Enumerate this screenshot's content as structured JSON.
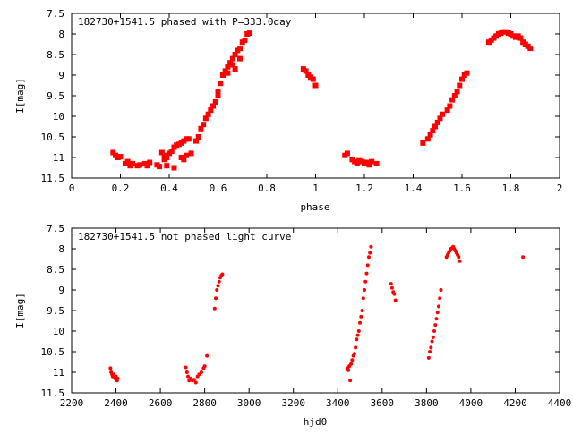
{
  "chart_data": [
    {
      "type": "scatter",
      "title": "182730+1541.5 phased with P=333.0day",
      "xlabel": "phase",
      "ylabel": "I[mag]",
      "xlim": [
        0,
        2
      ],
      "ylim": [
        11.5,
        7.5
      ],
      "y_inverted": true,
      "x_ticks": [
        "0",
        "0.2",
        "0.4",
        "0.6",
        "0.8",
        "1",
        "1.2",
        "1.4",
        "1.6",
        "1.8",
        "2"
      ],
      "y_ticks": [
        "7.5",
        "8",
        "8.5",
        "9",
        "9.5",
        "10",
        "10.5",
        "11",
        "11.5"
      ],
      "grid": false,
      "marker_color": "#ff0000",
      "series": [
        {
          "points": [
            [
              0.17,
              10.88
            ],
            [
              0.18,
              10.95
            ],
            [
              0.19,
              11.0
            ],
            [
              0.2,
              10.98
            ],
            [
              0.22,
              11.15
            ],
            [
              0.23,
              11.1
            ],
            [
              0.24,
              11.2
            ],
            [
              0.25,
              11.15
            ],
            [
              0.27,
              11.2
            ],
            [
              0.28,
              11.18
            ],
            [
              0.3,
              11.15
            ],
            [
              0.31,
              11.2
            ],
            [
              0.32,
              11.12
            ],
            [
              0.35,
              11.18
            ],
            [
              0.36,
              11.22
            ],
            [
              0.37,
              10.88
            ],
            [
              0.38,
              10.95
            ],
            [
              0.39,
              11.0
            ],
            [
              0.4,
              10.9
            ],
            [
              0.41,
              10.85
            ],
            [
              0.42,
              10.75
            ],
            [
              0.43,
              10.7
            ],
            [
              0.44,
              10.68
            ],
            [
              0.45,
              10.65
            ],
            [
              0.46,
              10.6
            ],
            [
              0.47,
              10.55
            ],
            [
              0.48,
              10.55
            ],
            [
              0.38,
              11.05
            ],
            [
              0.39,
              11.2
            ],
            [
              0.42,
              11.25
            ],
            [
              0.45,
              11.0
            ],
            [
              0.46,
              11.05
            ],
            [
              0.47,
              10.95
            ],
            [
              0.49,
              10.9
            ],
            [
              0.51,
              10.6
            ],
            [
              0.52,
              10.5
            ],
            [
              0.53,
              10.3
            ],
            [
              0.54,
              10.2
            ],
            [
              0.55,
              10.05
            ],
            [
              0.56,
              9.95
            ],
            [
              0.57,
              9.85
            ],
            [
              0.58,
              9.75
            ],
            [
              0.59,
              9.65
            ],
            [
              0.6,
              9.5
            ],
            [
              0.6,
              9.4
            ],
            [
              0.61,
              9.2
            ],
            [
              0.62,
              9.0
            ],
            [
              0.63,
              8.9
            ],
            [
              0.64,
              8.8
            ],
            [
              0.65,
              8.7
            ],
            [
              0.66,
              8.6
            ],
            [
              0.67,
              8.5
            ],
            [
              0.68,
              8.4
            ],
            [
              0.69,
              8.35
            ],
            [
              0.7,
              8.2
            ],
            [
              0.71,
              8.15
            ],
            [
              0.72,
              8.0
            ],
            [
              0.73,
              7.98
            ],
            [
              0.64,
              8.95
            ],
            [
              0.66,
              8.75
            ],
            [
              0.67,
              8.85
            ],
            [
              0.69,
              8.6
            ],
            [
              0.95,
              8.85
            ],
            [
              0.96,
              8.9
            ],
            [
              0.97,
              9.0
            ],
            [
              0.98,
              9.05
            ],
            [
              0.99,
              9.1
            ],
            [
              1.0,
              9.25
            ],
            [
              1.12,
              10.95
            ],
            [
              1.13,
              10.9
            ],
            [
              1.15,
              11.05
            ],
            [
              1.16,
              11.1
            ],
            [
              1.17,
              11.15
            ],
            [
              1.18,
              11.08
            ],
            [
              1.19,
              11.1
            ],
            [
              1.2,
              11.15
            ],
            [
              1.21,
              11.12
            ],
            [
              1.22,
              11.18
            ],
            [
              1.23,
              11.1
            ],
            [
              1.25,
              11.15
            ],
            [
              1.44,
              10.65
            ],
            [
              1.46,
              10.55
            ],
            [
              1.47,
              10.45
            ],
            [
              1.48,
              10.35
            ],
            [
              1.49,
              10.25
            ],
            [
              1.5,
              10.15
            ],
            [
              1.51,
              10.05
            ],
            [
              1.52,
              9.95
            ],
            [
              1.54,
              9.85
            ],
            [
              1.55,
              9.75
            ],
            [
              1.56,
              9.6
            ],
            [
              1.57,
              9.5
            ],
            [
              1.58,
              9.4
            ],
            [
              1.59,
              9.25
            ],
            [
              1.6,
              9.1
            ],
            [
              1.61,
              9.0
            ],
            [
              1.62,
              8.95
            ],
            [
              1.71,
              8.2
            ],
            [
              1.72,
              8.15
            ],
            [
              1.73,
              8.1
            ],
            [
              1.74,
              8.05
            ],
            [
              1.75,
              8.0
            ],
            [
              1.76,
              7.98
            ],
            [
              1.77,
              7.95
            ],
            [
              1.78,
              7.95
            ],
            [
              1.79,
              7.98
            ],
            [
              1.8,
              8.0
            ],
            [
              1.81,
              8.05
            ],
            [
              1.82,
              8.08
            ],
            [
              1.83,
              8.05
            ],
            [
              1.84,
              8.1
            ],
            [
              1.85,
              8.2
            ],
            [
              1.86,
              8.25
            ],
            [
              1.87,
              8.3
            ],
            [
              1.88,
              8.35
            ]
          ]
        }
      ]
    },
    {
      "type": "scatter",
      "title": "182730+1541.5 not phased light curve",
      "xlabel": "hjd0",
      "ylabel": "I[mag]",
      "xlim": [
        2200,
        4400
      ],
      "ylim": [
        11.5,
        7.5
      ],
      "y_inverted": true,
      "x_ticks": [
        "2200",
        "2400",
        "2600",
        "2800",
        "3000",
        "3200",
        "3400",
        "3600",
        "3800",
        "4000",
        "4200",
        "4400"
      ],
      "y_ticks": [
        "7.5",
        "8",
        "8.5",
        "9",
        "9.5",
        "10",
        "10.5",
        "11",
        "11.5"
      ],
      "grid": false,
      "marker_color": "#ff0000",
      "series": [
        {
          "points": [
            [
              2375,
              10.9
            ],
            [
              2378,
              11.0
            ],
            [
              2382,
              11.05
            ],
            [
              2385,
              11.1
            ],
            [
              2390,
              11.05
            ],
            [
              2395,
              11.15
            ],
            [
              2400,
              11.1
            ],
            [
              2405,
              11.2
            ],
            [
              2408,
              11.15
            ],
            [
              2715,
              10.88
            ],
            [
              2720,
              11.0
            ],
            [
              2725,
              11.1
            ],
            [
              2730,
              11.2
            ],
            [
              2738,
              11.15
            ],
            [
              2745,
              11.2
            ],
            [
              2752,
              11.18
            ],
            [
              2760,
              11.25
            ],
            [
              2768,
              11.1
            ],
            [
              2775,
              11.05
            ],
            [
              2785,
              11.0
            ],
            [
              2795,
              10.9
            ],
            [
              2800,
              10.85
            ],
            [
              2810,
              10.6
            ],
            [
              2845,
              9.45
            ],
            [
              2850,
              9.2
            ],
            [
              2855,
              9.0
            ],
            [
              2860,
              8.9
            ],
            [
              2865,
              8.8
            ],
            [
              2870,
              8.7
            ],
            [
              2875,
              8.65
            ],
            [
              2880,
              8.62
            ],
            [
              3445,
              10.9
            ],
            [
              3448,
              10.95
            ],
            [
              3452,
              10.85
            ],
            [
              3456,
              11.2
            ],
            [
              3460,
              10.8
            ],
            [
              3465,
              10.7
            ],
            [
              3470,
              10.6
            ],
            [
              3475,
              10.55
            ],
            [
              3480,
              10.4
            ],
            [
              3485,
              10.2
            ],
            [
              3490,
              10.1
            ],
            [
              3495,
              10.0
            ],
            [
              3500,
              9.8
            ],
            [
              3505,
              9.65
            ],
            [
              3510,
              9.5
            ],
            [
              3515,
              9.2
            ],
            [
              3520,
              9.0
            ],
            [
              3525,
              8.8
            ],
            [
              3530,
              8.6
            ],
            [
              3535,
              8.4
            ],
            [
              3540,
              8.2
            ],
            [
              3545,
              8.1
            ],
            [
              3550,
              7.95
            ],
            [
              3640,
              8.85
            ],
            [
              3645,
              8.95
            ],
            [
              3650,
              9.05
            ],
            [
              3655,
              9.1
            ],
            [
              3660,
              9.25
            ],
            [
              3810,
              10.65
            ],
            [
              3815,
              10.5
            ],
            [
              3820,
              10.4
            ],
            [
              3825,
              10.25
            ],
            [
              3830,
              10.15
            ],
            [
              3835,
              10.0
            ],
            [
              3840,
              9.85
            ],
            [
              3845,
              9.7
            ],
            [
              3850,
              9.55
            ],
            [
              3855,
              9.4
            ],
            [
              3860,
              9.2
            ],
            [
              3865,
              9.0
            ],
            [
              3890,
              8.2
            ],
            [
              3895,
              8.15
            ],
            [
              3900,
              8.1
            ],
            [
              3905,
              8.05
            ],
            [
              3910,
              8.0
            ],
            [
              3915,
              7.98
            ],
            [
              3920,
              7.95
            ],
            [
              3925,
              8.0
            ],
            [
              3930,
              8.05
            ],
            [
              3935,
              8.1
            ],
            [
              3940,
              8.15
            ],
            [
              3945,
              8.2
            ],
            [
              3950,
              8.3
            ],
            [
              4235,
              8.2
            ]
          ]
        }
      ]
    }
  ]
}
